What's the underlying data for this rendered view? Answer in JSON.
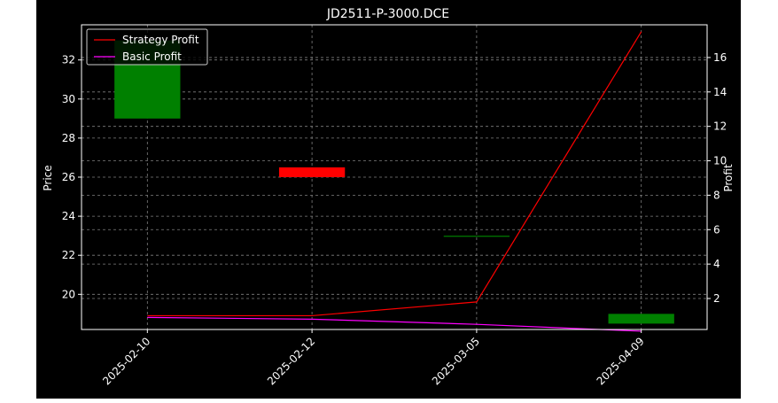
{
  "chart_data": {
    "type": "candlestick",
    "title": "JD2511-P-3000.DCE",
    "xlabel": "",
    "ylabel": "Price",
    "y2label": "Profit",
    "categories": [
      "2025-02-10",
      "2025-02-12",
      "2025-03-05",
      "2025-04-09"
    ],
    "ylim": [
      18.2,
      33.8
    ],
    "y2lim": [
      0.2,
      17.9
    ],
    "yticks": [
      20,
      22,
      24,
      26,
      28,
      30,
      32
    ],
    "y2ticks": [
      2,
      4,
      6,
      8,
      10,
      12,
      14,
      16
    ],
    "grid": true,
    "legend_position": "top-left",
    "candles": [
      {
        "date": "2025-02-10",
        "open": 29.0,
        "close": 33.0,
        "high": 33.0,
        "low": 29.0
      },
      {
        "date": "2025-02-12",
        "open": 26.5,
        "close": 26.0,
        "high": 26.5,
        "low": 26.0
      },
      {
        "date": "2025-03-05",
        "open": 23.0,
        "close": 23.0,
        "high": 23.0,
        "low": 23.0
      },
      {
        "date": "2025-04-09",
        "open": 18.5,
        "close": 19.0,
        "high": 19.0,
        "low": 18.5
      }
    ],
    "series": [
      {
        "name": "Strategy Profit",
        "axis": "right",
        "values": [
          1.0,
          1.0,
          1.8,
          17.5
        ]
      },
      {
        "name": "Basic Profit",
        "axis": "right",
        "values": [
          0.9,
          0.8,
          0.5,
          0.1
        ]
      }
    ],
    "colors": {
      "up": "#008000",
      "down": "#ff0000",
      "strategy": "#ff0000",
      "basic": "#ff00ff",
      "grid": "#7f7f7f",
      "axes": "#ffffff",
      "background": "#000000"
    }
  }
}
